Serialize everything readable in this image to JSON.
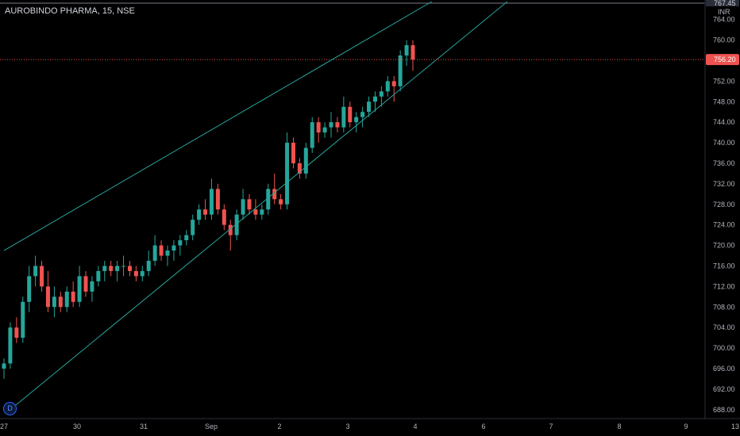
{
  "symbol_title": "AUROBINDO PHARMA, 15, NSE",
  "currency": "INR",
  "last_price_label": "756.20",
  "top_tag_label": "767.45",
  "dividend_badge": "D",
  "colors": {
    "background": "#000000",
    "up": "#26a69a",
    "down": "#ef5350",
    "trendline": "#26a69a",
    "last_price": "#ef5350",
    "axis_text": "#b2b5be"
  },
  "chart_data": {
    "type": "candlestick",
    "title": "AUROBINDO PHARMA, 15, NSE",
    "y_ticks": [
      "764.00",
      "760.00",
      "756.00",
      "752.00",
      "748.00",
      "744.00",
      "740.00",
      "736.00",
      "732.00",
      "728.00",
      "724.00",
      "720.00",
      "716.00",
      "712.00",
      "708.00",
      "704.00",
      "700.00",
      "696.00",
      "692.00",
      "688.00"
    ],
    "ylim": [
      687.5,
      767.5
    ],
    "x_ticks": [
      "27",
      "30",
      "31",
      "Sep",
      "2",
      "3",
      "4",
      "6",
      "7",
      "8",
      "9",
      "13"
    ],
    "last_price": 756.2,
    "trendlines": [
      {
        "name": "upper",
        "from": [
          0,
          719.0
        ],
        "to": [
          68,
          767.5
        ]
      },
      {
        "name": "lower",
        "from": [
          1,
          688.0
        ],
        "to": [
          80,
          767.5
        ]
      }
    ],
    "candles": [
      [
        696,
        698,
        694,
        697
      ],
      [
        697,
        705,
        696,
        704
      ],
      [
        704,
        706,
        701,
        702
      ],
      [
        702,
        710,
        701,
        709
      ],
      [
        709,
        716,
        707,
        714
      ],
      [
        714,
        718,
        712,
        716
      ],
      [
        716,
        717,
        711,
        712
      ],
      [
        712,
        715,
        707,
        708
      ],
      [
        708,
        712,
        706,
        710
      ],
      [
        710,
        711,
        707,
        708
      ],
      [
        708,
        712,
        707,
        711
      ],
      [
        711,
        713,
        708,
        709
      ],
      [
        709,
        716,
        708,
        714
      ],
      [
        714,
        715,
        710,
        711
      ],
      [
        711,
        714,
        709,
        713
      ],
      [
        713,
        716,
        712,
        715
      ],
      [
        715,
        717,
        713,
        716
      ],
      [
        716,
        717,
        714,
        715
      ],
      [
        715,
        717,
        713,
        716
      ],
      [
        716,
        718,
        714,
        716
      ],
      [
        716,
        717,
        714,
        715
      ],
      [
        715,
        716,
        713,
        714
      ],
      [
        714,
        716,
        713,
        715
      ],
      [
        715,
        719,
        714,
        717
      ],
      [
        717,
        722,
        716,
        720
      ],
      [
        720,
        721,
        717,
        718
      ],
      [
        718,
        720,
        716,
        719
      ],
      [
        719,
        721,
        717,
        720
      ],
      [
        720,
        722,
        718,
        721
      ],
      [
        721,
        723,
        720,
        722
      ],
      [
        722,
        726,
        721,
        725
      ],
      [
        725,
        728,
        724,
        727
      ],
      [
        727,
        729,
        725,
        726
      ],
      [
        726,
        733,
        725,
        731
      ],
      [
        731,
        732,
        726,
        727
      ],
      [
        727,
        728,
        723,
        724
      ],
      [
        724,
        725,
        719,
        722
      ],
      [
        722,
        727,
        721,
        726
      ],
      [
        726,
        731,
        725,
        729
      ],
      [
        729,
        730,
        726,
        727
      ],
      [
        727,
        729,
        725,
        726
      ],
      [
        726,
        728,
        725,
        727
      ],
      [
        727,
        732,
        726,
        731
      ],
      [
        731,
        734,
        728,
        729
      ],
      [
        729,
        730,
        727,
        728
      ],
      [
        728,
        742,
        727,
        740
      ],
      [
        740,
        741,
        735,
        736
      ],
      [
        736,
        737,
        733,
        734
      ],
      [
        734,
        740,
        733,
        739
      ],
      [
        739,
        745,
        738,
        744
      ],
      [
        744,
        745,
        740,
        742
      ],
      [
        742,
        744,
        741,
        743
      ],
      [
        743,
        746,
        741,
        744
      ],
      [
        744,
        745,
        742,
        743
      ],
      [
        743,
        749,
        742,
        747
      ],
      [
        747,
        748,
        743,
        744
      ],
      [
        744,
        746,
        742,
        745
      ],
      [
        745,
        747,
        743,
        746
      ],
      [
        746,
        749,
        745,
        748
      ],
      [
        748,
        750,
        746,
        749
      ],
      [
        749,
        751,
        747,
        750
      ],
      [
        750,
        753,
        749,
        752
      ],
      [
        752,
        753,
        748,
        751
      ],
      [
        751,
        758,
        750,
        757
      ],
      [
        757,
        760,
        755,
        759
      ],
      [
        759,
        760,
        754,
        756.2
      ]
    ]
  }
}
